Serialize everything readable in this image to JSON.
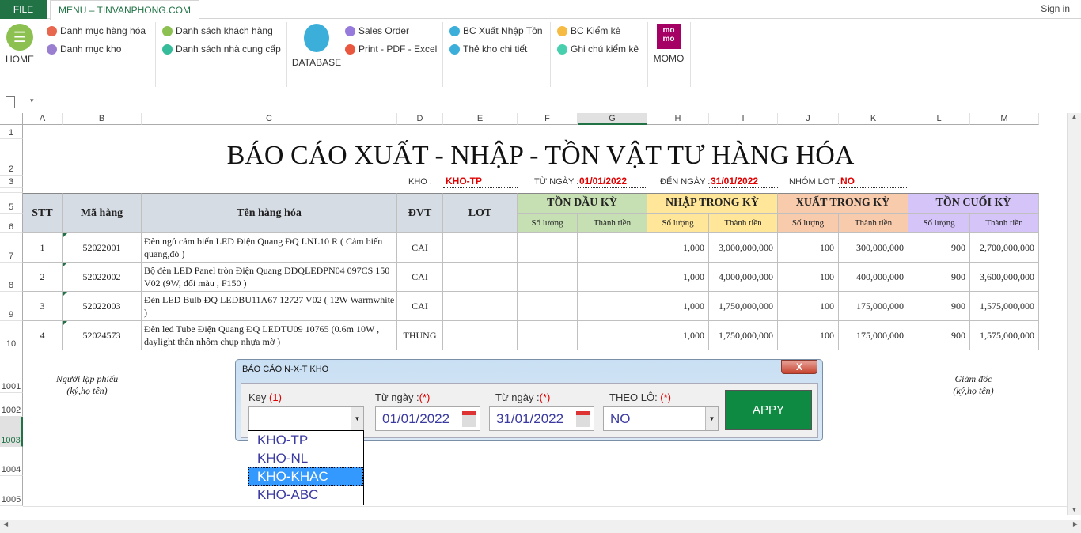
{
  "tabs": {
    "file": "FILE",
    "menu": "MENU – TINVANPHONG.COM",
    "signin": "Sign in"
  },
  "ribbon": {
    "home": "HOME",
    "database": "DATABASE",
    "momo": "MOMO",
    "momo_logo": "mo mo",
    "items": [
      {
        "label": "Danh mục hàng hóa",
        "color": "#e8674f"
      },
      {
        "label": "Danh mục kho",
        "color": "#9a7fd1"
      },
      {
        "label": "Danh sách khách hàng",
        "color": "#8cc152"
      },
      {
        "label": "Danh sách nhà cung cấp",
        "color": "#37bc9b"
      },
      {
        "label": "Sales Order",
        "color": "#967adc"
      },
      {
        "label": "Print - PDF - Excel",
        "color": "#e9573f"
      },
      {
        "label": "BC Xuất Nhập Tồn",
        "color": "#3bafda"
      },
      {
        "label": "Thẻ kho chi tiết",
        "color": "#3bafda"
      },
      {
        "label": "BC Kiểm kê",
        "color": "#f6bb42"
      },
      {
        "label": "Ghi chú kiểm kê",
        "color": "#48cfad"
      }
    ]
  },
  "columns": [
    "A",
    "B",
    "C",
    "D",
    "E",
    "F",
    "G",
    "H",
    "I",
    "J",
    "K",
    "L",
    "M"
  ],
  "rows": [
    "1",
    "2",
    "3",
    "5",
    "6",
    "7",
    "8",
    "9",
    "10",
    "1001",
    "1002",
    "1003",
    "1004",
    "1005"
  ],
  "report": {
    "title": "BÁO CÁO XUẤT - NHẬP - TỒN VẬT TƯ HÀNG HÓA",
    "kho_label": "KHO :",
    "kho_value": "KHO-TP",
    "from_label": "TỪ NGÀY :",
    "from_value": "01/01/2022",
    "to_label": "ĐẾN NGÀY :",
    "to_value": "31/01/2022",
    "lot_label": "NHÓM LOT :",
    "lot_value": "NO",
    "headers": {
      "stt": "STT",
      "ma": "Mã hàng",
      "ten": "Tên hàng hóa",
      "dvt": "ĐVT",
      "lot": "LOT",
      "groups": [
        {
          "label": "TỒN ĐẦU KỲ",
          "color": "#c6e0b4"
        },
        {
          "label": "NHẬP TRONG KỲ",
          "color": "#ffe699"
        },
        {
          "label": "XUẤT TRONG KỲ",
          "color": "#f8cbad"
        },
        {
          "label": "TỒN CUỐI KỲ",
          "color": "#d4c4f7"
        }
      ],
      "qty": "Số lượng",
      "amount": "Thành tiền"
    },
    "items": [
      [
        "1",
        "52022001",
        "Đèn ngủ cảm biến LED Điện Quang ĐQ LNL10 R  ( Cảm biến quang,đỏ )",
        "CAI",
        "",
        "",
        "",
        "1,000",
        "3,000,000,000",
        "100",
        "300,000,000",
        "900",
        "2,700,000,000"
      ],
      [
        "2",
        "52022002",
        "Bộ đèn LED Panel tròn Điện Quang DDQLEDPN04 097CS 150 V02 (9W, đổi màu , F150 )",
        "CAI",
        "",
        "",
        "",
        "1,000",
        "4,000,000,000",
        "100",
        "400,000,000",
        "900",
        "3,600,000,000"
      ],
      [
        "3",
        "52022003",
        "Đèn LED Bulb ĐQ LEDBU11A67 12727 V02 ( 12W Warmwhite )",
        "CAI",
        "",
        "",
        "",
        "1,000",
        "1,750,000,000",
        "100",
        "175,000,000",
        "900",
        "1,575,000,000"
      ],
      [
        "4",
        "52024573",
        "Đèn led Tube Điện Quang ĐQ LEDTU09 10765 (0.6m 10W , daylight thân nhôm chụp nhựa mờ )",
        "THUNG",
        "",
        "",
        "",
        "1,000",
        "1,750,000,000",
        "100",
        "175,000,000",
        "900",
        "1,575,000,000"
      ]
    ],
    "sign_left": [
      "Người lập phiếu",
      "(ký,họ tên)"
    ],
    "sign_right": [
      "Giám đốc",
      "(ký,họ tên)"
    ]
  },
  "dialog": {
    "title": "BÁO CÁO  N-X-T  KHO",
    "close": "X",
    "key_label": "Key ",
    "key_req": "(1)",
    "key_value": "",
    "from_label": "Từ ngày :",
    "from_req": "(*)",
    "from_value": "01/01/2022",
    "to_label": "Từ ngày :",
    "to_req": "(*)",
    "to_value": "31/01/2022",
    "lot_label": "THEO LÔ: ",
    "lot_req": "(*)",
    "lot_value": "NO",
    "apply": "APPY",
    "options": [
      "KHO-TP",
      "KHO-NL",
      "KHO-KHAC",
      "KHO-ABC"
    ],
    "selected": "KHO-KHAC"
  }
}
